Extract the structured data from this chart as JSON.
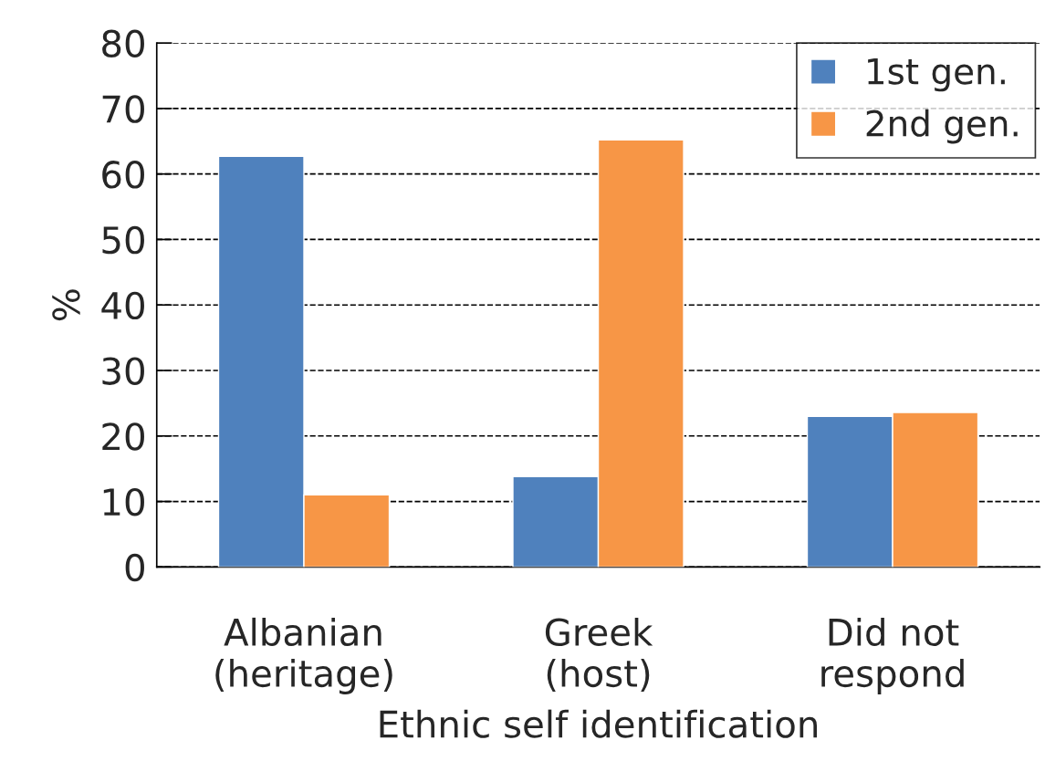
{
  "chart_data": {
    "type": "bar",
    "xlabel": "Ethnic self identification",
    "ylabel": "%",
    "categories": [
      "Albanian\n(heritage)",
      "Greek\n(host)",
      "Did not\nrespond"
    ],
    "series": [
      {
        "name": "1st gen.",
        "color": "#4f81bd",
        "values": [
          62.7,
          13.8,
          23.0
        ]
      },
      {
        "name": "2nd gen.",
        "color": "#f79646",
        "values": [
          11.0,
          65.2,
          23.6
        ]
      }
    ],
    "ylim": [
      0,
      80
    ],
    "yticks": [
      0,
      10,
      20,
      30,
      40,
      50,
      60,
      70,
      80
    ],
    "grid": "y",
    "legend": "top right"
  }
}
